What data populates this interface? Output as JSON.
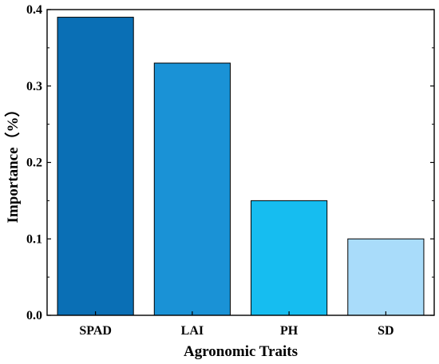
{
  "chart_data": {
    "type": "bar",
    "title": "",
    "xlabel": "Agronomic Traits",
    "ylabel": "Importance（%）",
    "categories": [
      "SPAD",
      "LAI",
      "PH",
      "SD"
    ],
    "values": [
      0.39,
      0.33,
      0.15,
      0.1
    ],
    "ylim": [
      0,
      0.4
    ],
    "yticks": [
      0.0,
      0.1,
      0.2,
      0.3,
      0.4
    ],
    "ytick_labels": [
      "0.0",
      "0.1",
      "0.2",
      "0.3",
      "0.4"
    ],
    "bar_colors": [
      "#0a6fb5",
      "#1a92d6",
      "#16bdf0",
      "#a9dcfa"
    ],
    "grid": false,
    "legend": "none"
  }
}
